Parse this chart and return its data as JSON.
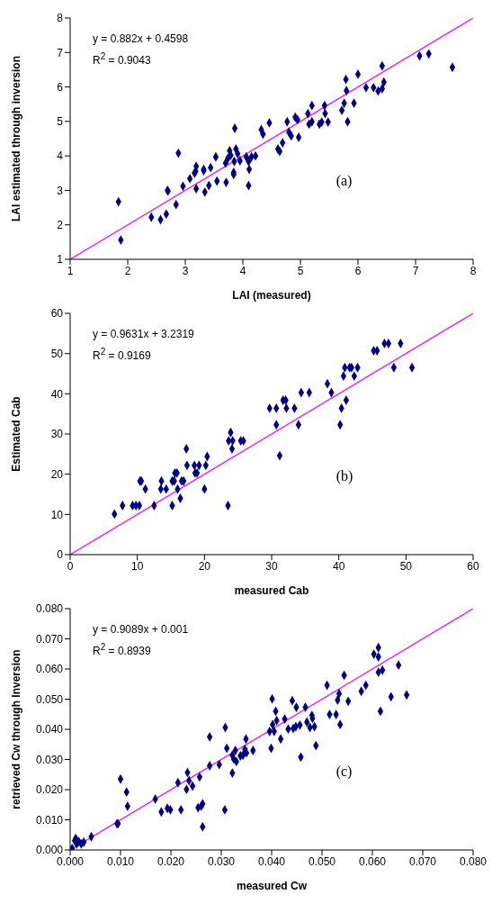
{
  "chart_data": [
    {
      "type": "scatter",
      "xlabel": "LAI (measured)",
      "ylabel": "LAI estimated through inversion",
      "xlim": [
        1,
        8
      ],
      "ylim": [
        1,
        8
      ],
      "xticks": [
        1,
        2,
        3,
        4,
        5,
        6,
        7,
        8
      ],
      "yticks": [
        1,
        2,
        3,
        4,
        5,
        6,
        7,
        8
      ],
      "annotations": [
        "y = 0.882x + 0.4598",
        "R$^{2}$ = 0.9043",
        "(a)"
      ],
      "series": [
        {
          "type": "scatter",
          "marker": "diamond",
          "color": "#000080",
          "x": [
            1.84,
            1.88,
            2.41,
            2.57,
            2.67,
            2.69,
            2.7,
            2.84,
            2.88,
            2.96,
            3.08,
            3.16,
            3.19,
            3.19,
            3.18,
            3.32,
            3.32,
            3.34,
            3.41,
            3.44,
            3.53,
            3.55,
            3.71,
            3.7,
            3.74,
            3.77,
            3.79,
            3.86,
            3.84,
            3.84,
            3.88,
            3.85,
            3.91,
            3.95,
            4.06,
            4.1,
            4.11,
            4.1,
            4.15,
            4.22,
            4.32,
            4.35,
            4.46,
            4.61,
            4.64,
            4.69,
            4.77,
            4.8,
            4.84,
            4.91,
            4.95,
            4.97,
            5.13,
            5.15,
            5.2,
            5.2,
            5.33,
            5.37,
            5.42,
            5.43,
            5.48,
            5.72,
            5.76,
            5.82,
            5.79,
            5.8,
            5.93,
            6.0,
            6.14,
            6.27,
            6.35,
            6.42,
            6.45,
            6.42,
            7.07,
            7.23,
            7.64
          ],
          "values": [
            2.67,
            1.56,
            2.22,
            2.15,
            2.31,
            3.0,
            2.98,
            2.59,
            4.08,
            3.12,
            3.34,
            3.5,
            3.7,
            3.05,
            3.55,
            3.61,
            3.57,
            2.95,
            3.14,
            3.66,
            3.97,
            3.27,
            3.23,
            3.79,
            3.93,
            4.15,
            4.02,
            4.8,
            3.52,
            3.46,
            4.2,
            3.84,
            4.06,
            3.86,
            3.97,
            3.84,
            3.61,
            3.14,
            3.97,
            4.0,
            4.76,
            4.63,
            4.96,
            4.2,
            4.13,
            4.38,
            4.99,
            4.69,
            4.58,
            5.12,
            5.05,
            4.54,
            5.23,
            4.92,
            5.46,
            4.99,
            4.92,
            4.98,
            5.46,
            5.23,
            4.98,
            5.32,
            5.53,
            4.99,
            6.22,
            5.89,
            5.53,
            6.37,
            5.98,
            5.98,
            5.88,
            5.95,
            6.14,
            6.61,
            6.9,
            6.96,
            6.57
          ]
        },
        {
          "type": "line",
          "marker": "none",
          "color": "#ff00ff",
          "x": [
            1,
            8
          ],
          "values": [
            1,
            8
          ]
        }
      ]
    },
    {
      "type": "scatter",
      "xlabel": "measured Cab",
      "ylabel": "Estimated Cab",
      "xlim": [
        0,
        60
      ],
      "ylim": [
        0,
        60
      ],
      "xticks": [
        0,
        10,
        20,
        30,
        40,
        50,
        60
      ],
      "yticks": [
        0,
        10,
        20,
        30,
        40,
        50,
        60
      ],
      "annotations": [
        "y = 0.9631x + 3.2319",
        "R$^{2}$ = 0.9169",
        "(b)"
      ],
      "series": [
        {
          "type": "scatter",
          "marker": "diamond",
          "color": "#000080",
          "x": [
            6.6,
            7.8,
            9.3,
            9.8,
            10.3,
            10.4,
            10.6,
            11.2,
            12.5,
            13.6,
            13.5,
            14.3,
            15.2,
            15.5,
            15.2,
            15.6,
            15.9,
            16.0,
            16.4,
            16.6,
            16.9,
            17.3,
            17.4,
            18.5,
            18.6,
            18.9,
            19.2,
            20.0,
            20.2,
            20.4,
            23.5,
            23.6,
            23.9,
            24.2,
            24.1,
            25.4,
            25.8,
            29.7,
            30.7,
            30.7,
            31.2,
            31.7,
            32.1,
            32.2,
            33.4,
            34.0,
            34.4,
            35.6,
            38.3,
            38.9,
            40.2,
            40.4,
            40.7,
            40.9,
            41.1,
            41.6,
            41.9,
            42.3,
            42.8,
            45.2,
            45.7,
            46.8,
            47.4,
            49.2,
            48.2,
            50.9
          ],
          "values": [
            10.1,
            12.2,
            12.2,
            12.2,
            12.2,
            18.3,
            18.3,
            16.3,
            12.2,
            18.3,
            16.3,
            16.3,
            18.3,
            18.3,
            12.2,
            20.3,
            20.3,
            16.3,
            14.0,
            18.3,
            18.3,
            26.3,
            22.2,
            22.2,
            20.3,
            20.3,
            22.2,
            16.3,
            22.2,
            24.4,
            12.2,
            28.3,
            30.4,
            28.3,
            26.3,
            28.3,
            28.3,
            36.4,
            36.4,
            32.3,
            24.6,
            38.4,
            38.4,
            36.4,
            36.4,
            32.3,
            40.3,
            40.3,
            42.5,
            40.3,
            32.3,
            36.4,
            44.4,
            46.5,
            38.4,
            46.5,
            46.5,
            44.4,
            46.5,
            50.7,
            50.7,
            52.5,
            52.5,
            52.5,
            46.5,
            46.5
          ]
        },
        {
          "type": "line",
          "marker": "none",
          "color": "#ff00ff",
          "x": [
            0,
            60
          ],
          "values": [
            0,
            60
          ]
        }
      ]
    },
    {
      "type": "scatter",
      "xlabel": "measured Cw",
      "ylabel": "retrieved Cw through Inversion",
      "xlim": [
        0,
        0.08
      ],
      "ylim": [
        0,
        0.08
      ],
      "xticks": [
        {
          "value": 0,
          "label": "0.000"
        },
        {
          "value": 0.01,
          "label": "0.010"
        },
        {
          "value": 0.02,
          "label": "0.020"
        },
        {
          "value": 0.03,
          "label": "0.030"
        },
        {
          "value": 0.04,
          "label": "0.040"
        },
        {
          "value": 0.05,
          "label": "0.050"
        },
        {
          "value": 0.06,
          "label": "0.060"
        },
        {
          "value": 0.07,
          "label": "0.070"
        },
        {
          "value": 0.08,
          "label": "0.080"
        }
      ],
      "yticks": [
        {
          "value": 0,
          "label": "0.000"
        },
        {
          "value": 0.01,
          "label": "0.010"
        },
        {
          "value": 0.02,
          "label": "0.020"
        },
        {
          "value": 0.03,
          "label": "0.030"
        },
        {
          "value": 0.04,
          "label": "0.040"
        },
        {
          "value": 0.05,
          "label": "0.050"
        },
        {
          "value": 0.06,
          "label": "0.060"
        },
        {
          "value": 0.07,
          "label": "0.070"
        },
        {
          "value": 0.08,
          "label": "0.080"
        }
      ],
      "annotations": [
        "y = 0.9089x + 0.001",
        "R$^{2}$ = 0.8939",
        "(c)"
      ],
      "series": [
        {
          "type": "scatter",
          "marker": "diamond",
          "color": "#000080",
          "x": [
            0.0011,
            0.0013,
            0.0017,
            0.0022,
            0.0027,
            0.0004,
            0.0009,
            0.0042,
            0.0093,
            0.0095,
            0.01,
            0.0112,
            0.0114,
            0.0169,
            0.0181,
            0.0193,
            0.0199,
            0.0214,
            0.022,
            0.0231,
            0.0233,
            0.0236,
            0.0243,
            0.0254,
            0.0257,
            0.026,
            0.0263,
            0.0263,
            0.0277,
            0.0277,
            0.0296,
            0.0307,
            0.0308,
            0.0311,
            0.0322,
            0.0322,
            0.0325,
            0.0328,
            0.033,
            0.0338,
            0.0343,
            0.0347,
            0.0349,
            0.035,
            0.0363,
            0.0396,
            0.0399,
            0.0401,
            0.0402,
            0.0405,
            0.0408,
            0.041,
            0.0418,
            0.0426,
            0.0433,
            0.0441,
            0.0443,
            0.0448,
            0.0456,
            0.0449,
            0.0458,
            0.0467,
            0.047,
            0.0476,
            0.048,
            0.0481,
            0.0485,
            0.0488,
            0.051,
            0.0515,
            0.0528,
            0.0531,
            0.0534,
            0.0536,
            0.0544,
            0.0552,
            0.0578,
            0.0587,
            0.0603,
            0.0612,
            0.0612,
            0.0612,
            0.062,
            0.0616,
            0.0637,
            0.0652,
            0.0668
          ],
          "values": [
            0.0038,
            0.002,
            0.0028,
            0.002,
            0.0026,
            0.0005,
            0.0031,
            0.0044,
            0.0087,
            0.0087,
            0.0235,
            0.0192,
            0.0145,
            0.0169,
            0.0126,
            0.0138,
            0.0133,
            0.0223,
            0.0133,
            0.0201,
            0.0257,
            0.023,
            0.0212,
            0.014,
            0.0242,
            0.0145,
            0.0153,
            0.0077,
            0.0375,
            0.0279,
            0.0283,
            0.0133,
            0.0406,
            0.0337,
            0.0255,
            0.0314,
            0.0301,
            0.033,
            0.0293,
            0.0312,
            0.0314,
            0.0334,
            0.0368,
            0.0322,
            0.033,
            0.0393,
            0.0337,
            0.0501,
            0.0416,
            0.0393,
            0.046,
            0.0429,
            0.0368,
            0.0434,
            0.0401,
            0.0495,
            0.0403,
            0.0409,
            0.0414,
            0.0473,
            0.0308,
            0.0473,
            0.0424,
            0.0406,
            0.0446,
            0.0436,
            0.0409,
            0.0346,
            0.0546,
            0.0449,
            0.0449,
            0.0497,
            0.0518,
            0.0416,
            0.0579,
            0.0493,
            0.0526,
            0.0546,
            0.0649,
            0.0671,
            0.064,
            0.0589,
            0.0596,
            0.046,
            0.0508,
            0.0613,
            0.0514
          ]
        },
        {
          "type": "line",
          "marker": "none",
          "color": "#ff00ff",
          "x": [
            0,
            0.08
          ],
          "values": [
            0,
            0.08
          ]
        }
      ]
    }
  ]
}
